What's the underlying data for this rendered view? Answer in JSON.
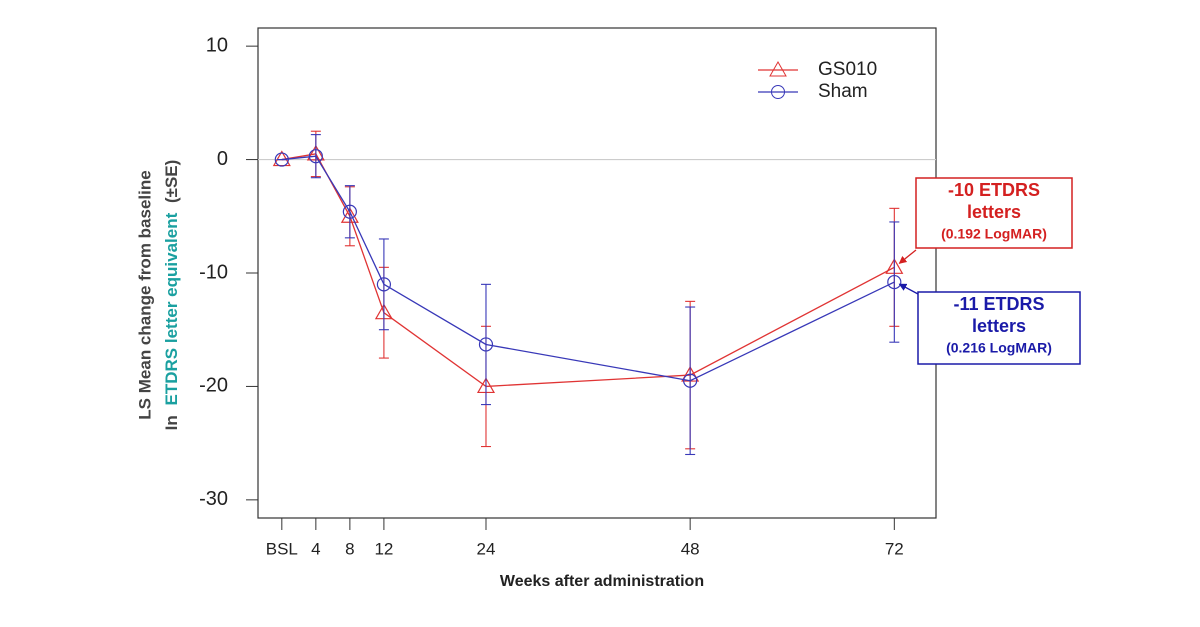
{
  "chart_data": {
    "type": "line",
    "x_label": "Weeks after administration",
    "y_label": {
      "line1": "LS Mean change from baseline",
      "line2_prefix": "In",
      "line2_highlight": "ETDRS letter equivalent",
      "line2_suffix": "(±SE)"
    },
    "xlim": [
      -2.8,
      76.9
    ],
    "xticks": [
      {
        "value": 0,
        "label": "BSL"
      },
      4,
      8,
      12,
      24,
      48,
      72
    ],
    "ylim": [
      -31.6,
      11.6
    ],
    "yticks": [
      10,
      0,
      -10,
      -20,
      -30
    ],
    "reference_line": 0,
    "legend": "upper right",
    "x": [
      0,
      4,
      8,
      12,
      24,
      48,
      72
    ],
    "series": [
      {
        "name": "GS010",
        "color": "#e03434",
        "marker": "triangle",
        "values": [
          0,
          0.5,
          -5,
          -13.5,
          -20,
          -19,
          -9.5
        ],
        "errors": [
          0,
          2,
          2.6,
          4,
          5.3,
          6.5,
          5.2
        ]
      },
      {
        "name": "Sham",
        "color": "#3838b8",
        "marker": "circle",
        "values": [
          0,
          0.3,
          -4.6,
          -11,
          -16.3,
          -19.5,
          -10.8
        ],
        "errors": [
          0,
          1.9,
          2.3,
          4,
          5.3,
          6.5,
          5.3
        ]
      }
    ],
    "annotations": [
      {
        "lines": [
          "-10 ETDRS",
          "letters",
          "(0.192 LogMAR)"
        ],
        "color": "#d42020",
        "series": 0
      },
      {
        "lines": [
          "-11 ETDRS",
          "letters",
          "(0.216 LogMAR)"
        ],
        "color": "#1a1aa8",
        "series": 1
      }
    ]
  }
}
